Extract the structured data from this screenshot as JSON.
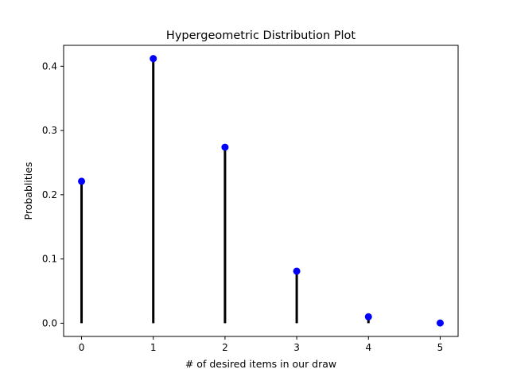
{
  "chart_data": {
    "type": "stem",
    "title": "Hypergeometric Distribution Plot",
    "xlabel": "# of desired items in our draw",
    "ylabel": "Probablities",
    "x": [
      0,
      1,
      2,
      3,
      4,
      5
    ],
    "y": [
      0.221,
      0.412,
      0.274,
      0.081,
      0.01,
      0.0003
    ],
    "xlim": [
      -0.25,
      5.25
    ],
    "ylim": [
      -0.0206,
      0.4326
    ],
    "xticks": [
      0,
      1,
      2,
      3,
      4,
      5
    ],
    "xtick_labels": [
      "0",
      "1",
      "2",
      "3",
      "4",
      "5"
    ],
    "yticks": [
      0.0,
      0.1,
      0.2,
      0.3,
      0.4
    ],
    "ytick_labels": [
      "0.0",
      "0.1",
      "0.2",
      "0.3",
      "0.4"
    ],
    "grid": false,
    "legend": "none",
    "colors": {
      "stem": "#000000",
      "marker": "#0000ff",
      "axes": "#000000"
    }
  }
}
